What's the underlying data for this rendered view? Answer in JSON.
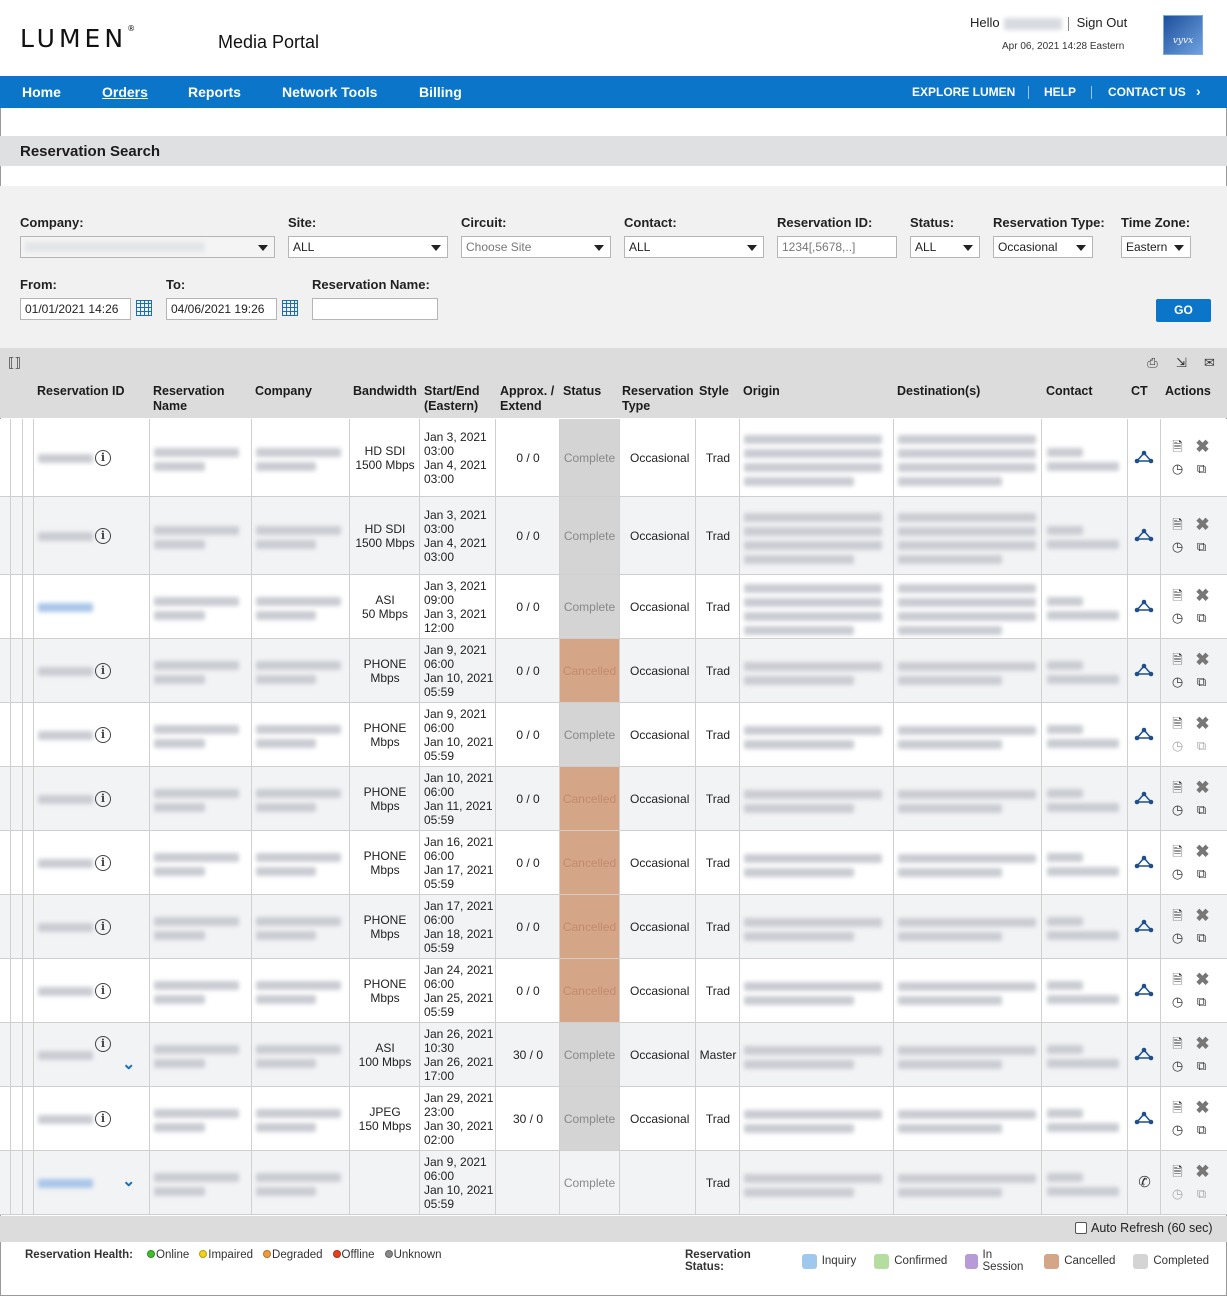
{
  "header": {
    "logo": "LUMEN",
    "portal_title": "Media Portal",
    "hello": "Hello",
    "sign_out": "Sign Out",
    "datetime": "Apr 06, 2021 14:28 Eastern",
    "partner_logo": "vyvx"
  },
  "nav": {
    "left": [
      "Home",
      "Orders",
      "Reports",
      "Network Tools",
      "Billing"
    ],
    "active": "Orders",
    "right": [
      "EXPLORE LUMEN",
      "HELP",
      "CONTACT US"
    ]
  },
  "section_title": "Reservation Search",
  "filters": {
    "company_label": "Company:",
    "site_label": "Site:",
    "site_value": "ALL",
    "circuit_label": "Circuit:",
    "circuit_placeholder": "Choose Site",
    "contact_label": "Contact:",
    "contact_value": "ALL",
    "reservation_id_label": "Reservation ID:",
    "reservation_id_placeholder": "1234[,5678,..]",
    "status_label": "Status:",
    "status_value": "ALL",
    "reservation_type_label": "Reservation Type:",
    "reservation_type_value": "Occasional",
    "time_zone_label": "Time Zone:",
    "time_zone_value": "Eastern",
    "from_label": "From:",
    "from_value": "01/01/2021 14:26",
    "to_label": "To:",
    "to_value": "04/06/2021 19:26",
    "reservation_name_label": "Reservation Name:",
    "go": "GO"
  },
  "table": {
    "headers": {
      "reservation_id": "Reservation ID",
      "reservation_name_1": "Reservation",
      "reservation_name_2": "Name",
      "company": "Company",
      "bandwidth": "Bandwidth",
      "start_end_1": "Start/End",
      "start_end_2": "(Eastern)",
      "approx_1": "Approx. /",
      "approx_2": "Extend",
      "status": "Status",
      "reservation_type_1": "Reservation",
      "reservation_type_2": "Type",
      "style": "Style",
      "origin": "Origin",
      "destinations": "Destination(s)",
      "contact": "Contact",
      "ct": "CT",
      "actions": "Actions"
    },
    "rows": [
      {
        "bw1": "HD SDI",
        "bw2": "1500 Mbps",
        "d1": "Jan 3, 2021",
        "t1": "03:00",
        "d2": "Jan 4, 2021",
        "t2": "03:00",
        "approx": "0 / 0",
        "status": "Complete",
        "type": "Occasional",
        "style": "Trad"
      },
      {
        "bw1": "HD SDI",
        "bw2": "1500 Mbps",
        "d1": "Jan 3, 2021",
        "t1": "03:00",
        "d2": "Jan 4, 2021",
        "t2": "03:00",
        "approx": "0 / 0",
        "status": "Complete",
        "type": "Occasional",
        "style": "Trad"
      },
      {
        "bw1": "ASI",
        "bw2": "50 Mbps",
        "d1": "Jan 3, 2021",
        "t1": "09:00",
        "d2": "Jan 3, 2021",
        "t2": "12:00",
        "approx": "0 / 0",
        "status": "Complete",
        "type": "Occasional",
        "style": "Trad"
      },
      {
        "bw1": "PHONE",
        "bw2": "Mbps",
        "d1": "Jan 9, 2021",
        "t1": "06:00",
        "d2": "Jan 10, 2021",
        "t2": "05:59",
        "approx": "0 / 0",
        "status": "Cancelled",
        "type": "Occasional",
        "style": "Trad"
      },
      {
        "bw1": "PHONE",
        "bw2": "Mbps",
        "d1": "Jan 9, 2021",
        "t1": "06:00",
        "d2": "Jan 10, 2021",
        "t2": "05:59",
        "approx": "0 / 0",
        "status": "Complete",
        "type": "Occasional",
        "style": "Trad"
      },
      {
        "bw1": "PHONE",
        "bw2": "Mbps",
        "d1": "Jan 10, 2021",
        "t1": "06:00",
        "d2": "Jan 11, 2021",
        "t2": "05:59",
        "approx": "0 / 0",
        "status": "Cancelled",
        "type": "Occasional",
        "style": "Trad"
      },
      {
        "bw1": "PHONE",
        "bw2": "Mbps",
        "d1": "Jan 16, 2021",
        "t1": "06:00",
        "d2": "Jan 17, 2021",
        "t2": "05:59",
        "approx": "0 / 0",
        "status": "Cancelled",
        "type": "Occasional",
        "style": "Trad"
      },
      {
        "bw1": "PHONE",
        "bw2": "Mbps",
        "d1": "Jan 17, 2021",
        "t1": "06:00",
        "d2": "Jan 18, 2021",
        "t2": "05:59",
        "approx": "0 / 0",
        "status": "Cancelled",
        "type": "Occasional",
        "style": "Trad"
      },
      {
        "bw1": "PHONE",
        "bw2": "Mbps",
        "d1": "Jan 24, 2021",
        "t1": "06:00",
        "d2": "Jan 25, 2021",
        "t2": "05:59",
        "approx": "0 / 0",
        "status": "Cancelled",
        "type": "Occasional",
        "style": "Trad"
      },
      {
        "bw1": "ASI",
        "bw2": "100 Mbps",
        "d1": "Jan 26, 2021",
        "t1": "10:30",
        "d2": "Jan 26, 2021",
        "t2": "17:00",
        "approx": "30 / 0",
        "status": "Complete",
        "type": "Occasional",
        "style": "Master"
      },
      {
        "bw1": "JPEG",
        "bw2": "150 Mbps",
        "d1": "Jan 29, 2021",
        "t1": "23:00",
        "d2": "Jan 30, 2021",
        "t2": "02:00",
        "approx": "30 / 0",
        "status": "Complete",
        "type": "Occasional",
        "style": "Trad"
      },
      {
        "bw1": "",
        "bw2": "",
        "d1": "Jan 9, 2021",
        "t1": "06:00",
        "d2": "Jan 10, 2021",
        "t2": "05:59",
        "approx": "",
        "status": "Complete",
        "type": "",
        "style": "Trad"
      }
    ]
  },
  "footer": {
    "auto_refresh": "Auto Refresh (60 sec)",
    "health_label": "Reservation Health:",
    "health": [
      {
        "label": "Online",
        "color": "#3fbf2a"
      },
      {
        "label": "Impaired",
        "color": "#f2d21b"
      },
      {
        "label": "Degraded",
        "color": "#f29a3a"
      },
      {
        "label": "Offline",
        "color": "#e8401c"
      },
      {
        "label": "Unknown",
        "color": "#8a8a8a"
      }
    ],
    "status_label": "Reservation Status:",
    "statuses": [
      {
        "label": "Inquiry",
        "color": "#9ec8ee"
      },
      {
        "label": "Confirmed",
        "color": "#b6dda0"
      },
      {
        "label": "In Session",
        "color": "#b79ad6"
      },
      {
        "label": "Cancelled",
        "color": "#d5a588"
      },
      {
        "label": "Completed",
        "color": "#d4d4d4"
      }
    ]
  }
}
